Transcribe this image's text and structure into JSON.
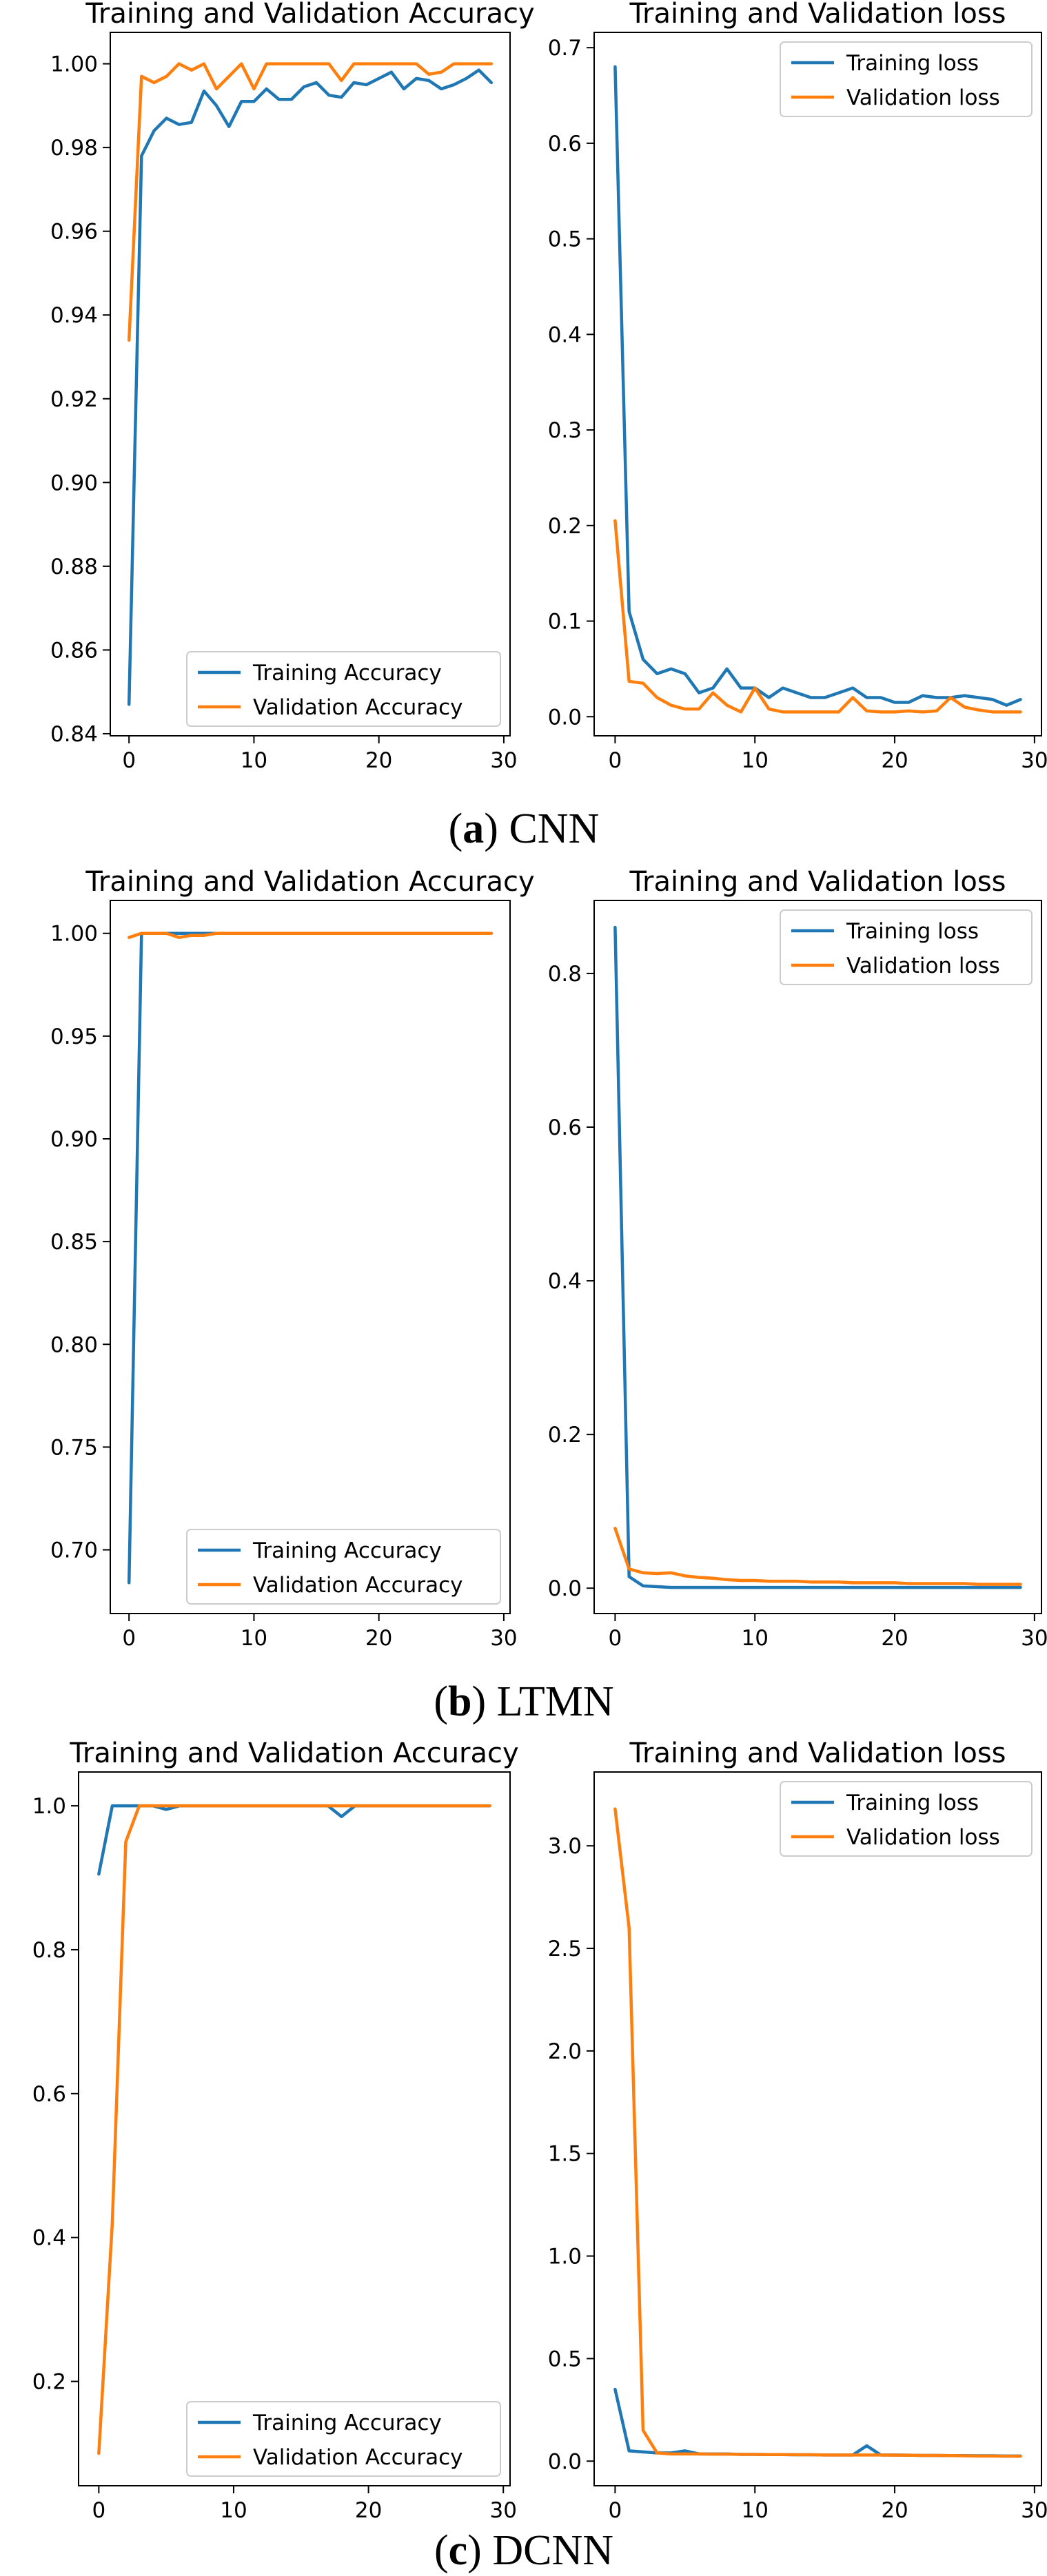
{
  "colors": {
    "training": "#1f77b4",
    "validation": "#ff7f0e"
  },
  "figures": [
    {
      "caption": {
        "letter": "a",
        "model": "CNN"
      },
      "charts": [
        {
          "type": "line",
          "title": "Training and Validation Accuracy",
          "x_ticks": [
            0,
            10,
            20,
            30
          ],
          "y_ticks": [
            "0.84",
            "0.86",
            "0.88",
            "0.90",
            "0.92",
            "0.94",
            "0.96",
            "0.98",
            "1.00"
          ],
          "xlim": [
            -1.5,
            30.5
          ],
          "ylim": [
            0.8395,
            1.0075
          ],
          "legend_position": "lower-right",
          "series": [
            {
              "name": "Training Accuracy",
              "color_key": "training",
              "values": [
                0.847,
                0.978,
                0.984,
                0.987,
                0.9855,
                0.986,
                0.9935,
                0.99,
                0.985,
                0.991,
                0.991,
                0.994,
                0.9915,
                0.9915,
                0.9945,
                0.9955,
                0.9925,
                0.992,
                0.9955,
                0.995,
                0.9965,
                0.998,
                0.994,
                0.9965,
                0.996,
                0.994,
                0.995,
                0.9965,
                0.9985,
                0.9955
              ]
            },
            {
              "name": "Validation Accuracy",
              "color_key": "validation",
              "values": [
                0.934,
                0.997,
                0.9955,
                0.997,
                1.0,
                0.9985,
                1.0,
                0.994,
                0.997,
                1.0,
                0.994,
                1.0,
                1.0,
                1.0,
                1.0,
                1.0,
                1.0,
                0.996,
                1.0,
                1.0,
                1.0,
                1.0,
                1.0,
                1.0,
                0.9975,
                0.998,
                1.0,
                1.0,
                1.0,
                1.0
              ]
            }
          ]
        },
        {
          "type": "line",
          "title": "Training and Validation loss",
          "x_ticks": [
            0,
            10,
            20,
            30
          ],
          "y_ticks": [
            "0.0",
            "0.1",
            "0.2",
            "0.3",
            "0.4",
            "0.5",
            "0.6",
            "0.7"
          ],
          "xlim": [
            -1.5,
            30.5
          ],
          "ylim": [
            -0.02,
            0.716
          ],
          "legend_position": "upper-right",
          "series": [
            {
              "name": "Training loss",
              "color_key": "training",
              "values": [
                0.68,
                0.11,
                0.06,
                0.045,
                0.05,
                0.045,
                0.025,
                0.03,
                0.05,
                0.03,
                0.03,
                0.02,
                0.03,
                0.025,
                0.02,
                0.02,
                0.025,
                0.03,
                0.02,
                0.02,
                0.015,
                0.015,
                0.022,
                0.02,
                0.02,
                0.022,
                0.02,
                0.018,
                0.012,
                0.018
              ]
            },
            {
              "name": "Validation loss",
              "color_key": "validation",
              "values": [
                0.205,
                0.037,
                0.035,
                0.02,
                0.012,
                0.008,
                0.008,
                0.025,
                0.012,
                0.005,
                0.03,
                0.008,
                0.005,
                0.005,
                0.005,
                0.005,
                0.005,
                0.02,
                0.006,
                0.005,
                0.005,
                0.006,
                0.005,
                0.006,
                0.02,
                0.01,
                0.007,
                0.005,
                0.005,
                0.005
              ]
            }
          ]
        }
      ]
    },
    {
      "caption": {
        "letter": "b",
        "model": "LTMN"
      },
      "charts": [
        {
          "type": "line",
          "title": "Training and Validation Accuracy",
          "x_ticks": [
            0,
            10,
            20,
            30
          ],
          "y_ticks": [
            "0.70",
            "0.75",
            "0.80",
            "0.85",
            "0.90",
            "0.95",
            "1.00"
          ],
          "xlim": [
            -1.5,
            30.5
          ],
          "ylim": [
            0.669,
            1.016
          ],
          "legend_position": "lower-right",
          "series": [
            {
              "name": "Training Accuracy",
              "color_key": "training",
              "values": [
                0.684,
                1.0,
                1.0,
                1.0,
                1.0,
                1.0,
                1.0,
                1.0,
                1.0,
                1.0,
                1.0,
                1.0,
                1.0,
                1.0,
                1.0,
                1.0,
                1.0,
                1.0,
                1.0,
                1.0,
                1.0,
                1.0,
                1.0,
                1.0,
                1.0,
                1.0,
                1.0,
                1.0,
                1.0,
                1.0
              ]
            },
            {
              "name": "Validation Accuracy",
              "color_key": "validation",
              "values": [
                0.998,
                1.0,
                1.0,
                1.0,
                0.998,
                0.999,
                0.999,
                1.0,
                1.0,
                1.0,
                1.0,
                1.0,
                1.0,
                1.0,
                1.0,
                1.0,
                1.0,
                1.0,
                1.0,
                1.0,
                1.0,
                1.0,
                1.0,
                1.0,
                1.0,
                1.0,
                1.0,
                1.0,
                1.0,
                1.0
              ]
            }
          ]
        },
        {
          "type": "line",
          "title": "Training and Validation loss",
          "x_ticks": [
            0,
            10,
            20,
            30
          ],
          "y_ticks": [
            "0.0",
            "0.2",
            "0.4",
            "0.6",
            "0.8"
          ],
          "xlim": [
            -1.5,
            30.5
          ],
          "ylim": [
            -0.033,
            0.895
          ],
          "legend_position": "upper-right",
          "series": [
            {
              "name": "Training loss",
              "color_key": "training",
              "values": [
                0.86,
                0.015,
                0.003,
                0.002,
                0.001,
                0.001,
                0.001,
                0.001,
                0.001,
                0.001,
                0.001,
                0.001,
                0.001,
                0.001,
                0.001,
                0.001,
                0.001,
                0.001,
                0.001,
                0.001,
                0.001,
                0.001,
                0.001,
                0.001,
                0.001,
                0.001,
                0.001,
                0.001,
                0.001,
                0.001
              ]
            },
            {
              "name": "Validation loss",
              "color_key": "validation",
              "values": [
                0.078,
                0.025,
                0.02,
                0.019,
                0.02,
                0.016,
                0.014,
                0.013,
                0.011,
                0.01,
                0.01,
                0.009,
                0.009,
                0.009,
                0.008,
                0.008,
                0.008,
                0.007,
                0.007,
                0.007,
                0.007,
                0.006,
                0.006,
                0.006,
                0.006,
                0.006,
                0.005,
                0.005,
                0.005,
                0.005
              ]
            }
          ]
        }
      ]
    },
    {
      "caption": {
        "letter": "c",
        "model": "DCNN"
      },
      "charts": [
        {
          "type": "line",
          "title": "Training and Validation Accuracy",
          "x_ticks": [
            0,
            10,
            20,
            30
          ],
          "y_ticks": [
            "0.2",
            "0.4",
            "0.6",
            "0.8",
            "1.0"
          ],
          "xlim": [
            -1.5,
            30.5
          ],
          "ylim": [
            0.055,
            1.047
          ],
          "legend_position": "lower-right",
          "series": [
            {
              "name": "Training Accuracy",
              "color_key": "training",
              "values": [
                0.905,
                1.0,
                1.0,
                1.0,
                1.0,
                0.995,
                1.0,
                1.0,
                1.0,
                1.0,
                1.0,
                1.0,
                1.0,
                1.0,
                1.0,
                1.0,
                1.0,
                1.0,
                0.985,
                1.0,
                1.0,
                1.0,
                1.0,
                1.0,
                1.0,
                1.0,
                1.0,
                1.0,
                1.0,
                1.0
              ]
            },
            {
              "name": "Validation Accuracy",
              "color_key": "validation",
              "values": [
                0.1,
                0.42,
                0.95,
                1.0,
                1.0,
                1.0,
                1.0,
                1.0,
                1.0,
                1.0,
                1.0,
                1.0,
                1.0,
                1.0,
                1.0,
                1.0,
                1.0,
                1.0,
                1.0,
                1.0,
                1.0,
                1.0,
                1.0,
                1.0,
                1.0,
                1.0,
                1.0,
                1.0,
                1.0,
                1.0
              ]
            }
          ]
        },
        {
          "type": "line",
          "title": "Training and Validation loss",
          "x_ticks": [
            0,
            10,
            20,
            30
          ],
          "y_ticks": [
            "0.0",
            "0.5",
            "1.0",
            "1.5",
            "2.0",
            "2.5",
            "3.0"
          ],
          "xlim": [
            -1.5,
            30.5
          ],
          "ylim": [
            -0.12,
            3.36
          ],
          "legend_position": "upper-right",
          "series": [
            {
              "name": "Training loss",
              "color_key": "training",
              "values": [
                0.35,
                0.05,
                0.045,
                0.04,
                0.04,
                0.05,
                0.035,
                0.035,
                0.035,
                0.033,
                0.033,
                0.032,
                0.032,
                0.031,
                0.031,
                0.03,
                0.03,
                0.03,
                0.075,
                0.03,
                0.03,
                0.029,
                0.028,
                0.028,
                0.027,
                0.027,
                0.026,
                0.026,
                0.025,
                0.025
              ]
            },
            {
              "name": "Validation loss",
              "color_key": "validation",
              "values": [
                3.18,
                2.6,
                0.15,
                0.04,
                0.035,
                0.035,
                0.035,
                0.034,
                0.034,
                0.033,
                0.033,
                0.032,
                0.032,
                0.031,
                0.031,
                0.03,
                0.03,
                0.03,
                0.03,
                0.03,
                0.029,
                0.029,
                0.028,
                0.028,
                0.027,
                0.026,
                0.025,
                0.025,
                0.024,
                0.024
              ]
            }
          ]
        }
      ]
    }
  ]
}
